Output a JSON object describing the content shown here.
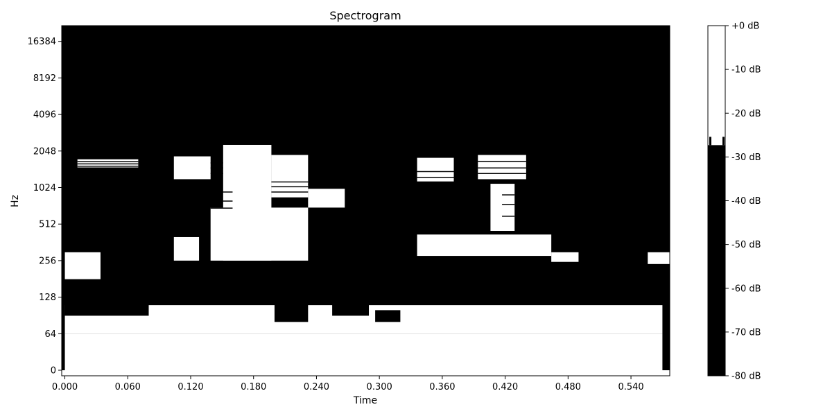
{
  "chart_data": {
    "type": "heatmap",
    "title": "Spectrogram",
    "xlabel": "Time",
    "ylabel": "Hz",
    "x_ticks": [
      "0.000",
      "0.060",
      "0.120",
      "0.180",
      "0.240",
      "0.300",
      "0.360",
      "0.420",
      "0.480",
      "0.540"
    ],
    "x_tick_values": [
      0.0,
      0.06,
      0.12,
      0.18,
      0.24,
      0.3,
      0.36,
      0.42,
      0.48,
      0.54
    ],
    "xlim": [
      -0.003,
      0.577
    ],
    "y_scale": "symlog (base 2)",
    "y_ticks": [
      "0",
      "64",
      "128",
      "256",
      "512",
      "1024",
      "2048",
      "4096",
      "8192",
      "16384"
    ],
    "y_tick_values": [
      0,
      64,
      128,
      256,
      512,
      1024,
      2048,
      4096,
      8192,
      16384
    ],
    "colorbar": {
      "labels": [
        "+0 dB",
        "-10 dB",
        "-20 dB",
        "-30 dB",
        "-40 dB",
        "-50 dB",
        "-60 dB",
        "-70 dB",
        "-80 dB"
      ],
      "values": [
        0,
        -10,
        -20,
        -30,
        -40,
        -50,
        -60,
        -70,
        -80
      ],
      "range": [
        -80,
        0
      ],
      "white_above_db": -27.3,
      "colors": {
        "high": "#ffffff",
        "low": "#000000"
      }
    },
    "levels": {
      "low": "#000000",
      "high": "#ffffff"
    },
    "frame_times": [
      0.0,
      0.0116,
      0.0232,
      0.0348,
      0.0464,
      0.058,
      0.0697,
      0.0813,
      0.0929,
      0.1045,
      0.1161,
      0.1277,
      0.1393,
      0.1509,
      0.1625,
      0.1741,
      0.1858,
      0.1974,
      0.209,
      0.2206,
      0.2322,
      0.2438,
      0.2554,
      0.267,
      0.2786,
      0.2902,
      0.3019,
      0.3135,
      0.3251,
      0.3367,
      0.3483,
      0.3599,
      0.3715,
      0.3831,
      0.3947,
      0.4063,
      0.418,
      0.4296,
      0.4412,
      0.4528,
      0.4644,
      0.476,
      0.4876,
      0.4992,
      0.5108,
      0.5224,
      0.5341,
      0.5457,
      0.5573,
      0.5689
    ],
    "bright_regions_hz": [
      {
        "t0": 0.0,
        "t1": 0.57,
        "f0": 0,
        "f1": 64
      },
      {
        "t0": 0.0,
        "t1": 0.57,
        "f0": 64,
        "f1": 110
      },
      {
        "t0": 0.0,
        "t1": 0.034,
        "f0": 180,
        "f1": 300
      },
      {
        "t0": 0.104,
        "t1": 0.128,
        "f0": 256,
        "f1": 400
      },
      {
        "t0": 0.139,
        "t1": 0.232,
        "f0": 256,
        "f1": 700
      },
      {
        "t0": 0.151,
        "t1": 0.197,
        "f0": 256,
        "f1": 2300
      },
      {
        "t0": 0.104,
        "t1": 0.139,
        "f0": 1200,
        "f1": 1850
      },
      {
        "t0": 0.197,
        "t1": 0.232,
        "f0": 850,
        "f1": 1900
      },
      {
        "t0": 0.232,
        "t1": 0.267,
        "f0": 700,
        "f1": 1000
      },
      {
        "t0": 0.336,
        "t1": 0.371,
        "f0": 1150,
        "f1": 1800
      },
      {
        "t0": 0.394,
        "t1": 0.44,
        "f0": 1200,
        "f1": 1900
      },
      {
        "t0": 0.406,
        "t1": 0.429,
        "f0": 450,
        "f1": 1100
      },
      {
        "t0": 0.012,
        "t1": 0.07,
        "f0": 1500,
        "f1": 1750
      },
      {
        "t0": 0.336,
        "t1": 0.464,
        "f0": 280,
        "f1": 420
      },
      {
        "t0": 0.464,
        "t1": 0.49,
        "f0": 240,
        "f1": 300
      },
      {
        "t0": 0.556,
        "t1": 0.577,
        "f0": 240,
        "f1": 300
      }
    ],
    "dark_regions_hz": [
      {
        "t0": 0.0,
        "t1": 0.577,
        "f0": 2500,
        "f1": 22050
      },
      {
        "t0": 0.0,
        "t1": 0.08,
        "f0": 90,
        "f1": 170
      },
      {
        "t0": 0.081,
        "t1": 0.116,
        "f0": 150,
        "f1": 240
      },
      {
        "t0": 0.244,
        "t1": 0.289,
        "f0": 180,
        "f1": 280
      },
      {
        "t0": 0.424,
        "t1": 0.447,
        "f0": 128,
        "f1": 165
      },
      {
        "t0": 0.46,
        "t1": 0.555,
        "f0": 128,
        "f1": 250
      },
      {
        "t0": 0.2,
        "t1": 0.232,
        "f0": 80,
        "f1": 150
      },
      {
        "t0": 0.255,
        "t1": 0.29,
        "f0": 90,
        "f1": 128
      },
      {
        "t0": 0.296,
        "t1": 0.32,
        "f0": 80,
        "f1": 100
      }
    ]
  }
}
